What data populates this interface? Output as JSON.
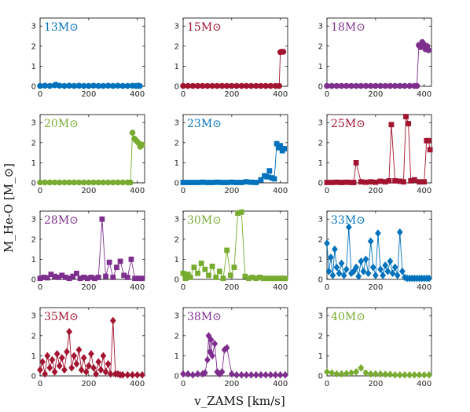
{
  "chart_data": {
    "type": "scatter",
    "layout": "4x3 grid of small multiples",
    "xlabel": "v_ZAMS [km/s]",
    "ylabel": "M_He-O [M_⊙]",
    "xlim": [
      0,
      430
    ],
    "ylim": [
      0,
      3.4
    ],
    "xticks": [
      0,
      200,
      400
    ],
    "yticks": [
      0,
      1,
      2,
      3
    ],
    "grid": false,
    "panels": [
      {
        "label": "13M⊙",
        "color": "#0072BD",
        "marker": "circle",
        "x": [
          0,
          20,
          40,
          60,
          65,
          80,
          100,
          120,
          140,
          160,
          180,
          200,
          220,
          240,
          260,
          280,
          300,
          320,
          340,
          360,
          380,
          395,
          405,
          410
        ],
        "y": [
          0.02,
          0.03,
          0.02,
          0.05,
          0.08,
          0.03,
          0.02,
          0.03,
          0.02,
          0.03,
          0.02,
          0.02,
          0.03,
          0.02,
          0.02,
          0.03,
          0.02,
          0.03,
          0.02,
          0.02,
          0.03,
          0.02,
          0.03,
          0.02
        ]
      },
      {
        "label": "15M⊙",
        "color": "#A2142F",
        "marker": "circle",
        "x": [
          0,
          20,
          40,
          60,
          80,
          100,
          120,
          140,
          160,
          180,
          200,
          220,
          240,
          260,
          280,
          300,
          320,
          340,
          360,
          380,
          395,
          400,
          405,
          412
        ],
        "y": [
          0.02,
          0.02,
          0.02,
          0.02,
          0.02,
          0.02,
          0.02,
          0.02,
          0.02,
          0.02,
          0.02,
          0.02,
          0.02,
          0.02,
          0.02,
          0.02,
          0.02,
          0.02,
          0.02,
          0.02,
          0.02,
          1.7,
          1.72,
          1.72
        ]
      },
      {
        "label": "18M⊙",
        "color": "#7E2F8E",
        "marker": "circle",
        "x": [
          0,
          20,
          40,
          60,
          80,
          100,
          120,
          140,
          160,
          180,
          200,
          220,
          240,
          260,
          280,
          300,
          320,
          340,
          360,
          370,
          378,
          385,
          392,
          398,
          405,
          412,
          418
        ],
        "y": [
          0.02,
          0.02,
          0.02,
          0.02,
          0.02,
          0.02,
          0.02,
          0.02,
          0.02,
          0.02,
          0.02,
          0.02,
          0.02,
          0.02,
          0.02,
          0.02,
          0.02,
          0.02,
          0.02,
          0.02,
          2.05,
          1.95,
          2.2,
          2.1,
          1.85,
          2.0,
          1.8
        ]
      },
      {
        "label": "20M⊙",
        "color": "#77AC30",
        "marker": "circle",
        "x": [
          0,
          20,
          40,
          60,
          80,
          100,
          120,
          140,
          160,
          180,
          200,
          220,
          240,
          260,
          280,
          300,
          320,
          340,
          360,
          372,
          380,
          388,
          396,
          404,
          412,
          420
        ],
        "y": [
          0.02,
          0.02,
          0.02,
          0.02,
          0.02,
          0.02,
          0.02,
          0.02,
          0.02,
          0.02,
          0.02,
          0.02,
          0.02,
          0.02,
          0.02,
          0.02,
          0.02,
          0.02,
          0.02,
          0.02,
          2.5,
          2.2,
          2.1,
          2.0,
          1.8,
          1.9
        ]
      },
      {
        "label": "23M⊙",
        "color": "#0072BD",
        "marker": "square",
        "x": [
          0,
          20,
          40,
          60,
          80,
          100,
          120,
          140,
          160,
          180,
          200,
          220,
          240,
          260,
          280,
          300,
          320,
          335,
          345,
          355,
          365,
          375,
          385,
          392,
          400,
          408,
          416
        ],
        "y": [
          0.02,
          0.02,
          0.02,
          0.02,
          0.03,
          0.02,
          0.02,
          0.03,
          0.02,
          0.02,
          0.03,
          0.02,
          0.02,
          0.05,
          0.03,
          0.02,
          0.15,
          0.35,
          0.3,
          0.6,
          0.25,
          0.2,
          1.95,
          1.75,
          1.85,
          1.6,
          1.7
        ]
      },
      {
        "label": "25M⊙",
        "color": "#A2142F",
        "marker": "square",
        "x": [
          0,
          20,
          40,
          60,
          80,
          100,
          110,
          120,
          140,
          160,
          180,
          200,
          220,
          240,
          255,
          265,
          280,
          300,
          315,
          325,
          335,
          345,
          360,
          380,
          400,
          410,
          418,
          424
        ],
        "y": [
          0.02,
          0.02,
          0.03,
          0.02,
          0.03,
          0.02,
          0.02,
          1.0,
          0.05,
          0.03,
          0.05,
          0.03,
          0.08,
          0.05,
          0.1,
          2.9,
          0.1,
          0.08,
          0.05,
          3.3,
          2.95,
          0.1,
          0.15,
          0.05,
          0.05,
          2.1,
          2.1,
          1.65
        ]
      },
      {
        "label": "28M⊙",
        "color": "#7E2F8E",
        "marker": "square",
        "x": [
          0,
          15,
          30,
          45,
          60,
          75,
          90,
          105,
          120,
          135,
          150,
          165,
          180,
          195,
          210,
          225,
          240,
          255,
          270,
          285,
          300,
          315,
          330,
          345,
          360,
          375,
          390,
          405,
          420
        ],
        "y": [
          0.05,
          0.1,
          0.08,
          0.25,
          0.15,
          0.1,
          0.2,
          0.1,
          0.05,
          0.15,
          0.3,
          0.05,
          0.1,
          0.05,
          0.1,
          0.05,
          0.1,
          3.0,
          0.15,
          0.85,
          0.1,
          0.6,
          0.9,
          0.2,
          0.1,
          1.0,
          0.05,
          0.05,
          0.05
        ]
      },
      {
        "label": "30M⊙",
        "color": "#77AC30",
        "marker": "square",
        "x": [
          0,
          10,
          20,
          30,
          45,
          60,
          75,
          90,
          105,
          120,
          135,
          150,
          165,
          180,
          195,
          210,
          225,
          240,
          255,
          270,
          285,
          300,
          315,
          330,
          345,
          360,
          375,
          390,
          405,
          420
        ],
        "y": [
          0.3,
          0.05,
          0.25,
          0.1,
          0.6,
          0.3,
          0.8,
          0.5,
          0.2,
          0.65,
          0.1,
          0.4,
          0.05,
          1.45,
          0.2,
          0.6,
          3.3,
          3.35,
          0.15,
          0.05,
          0.1,
          0.05,
          0.1,
          0.05,
          0.05,
          0.05,
          0.05,
          0.05,
          0.05,
          0.05
        ]
      },
      {
        "label": "33M⊙",
        "color": "#0072BD",
        "marker": "diamond",
        "x": [
          0,
          8,
          16,
          24,
          32,
          40,
          50,
          60,
          70,
          80,
          90,
          100,
          110,
          120,
          130,
          140,
          150,
          160,
          170,
          180,
          190,
          200,
          210,
          220,
          230,
          240,
          250,
          260,
          270,
          280,
          290,
          300,
          310,
          320,
          330,
          340,
          350,
          360,
          370,
          380,
          390,
          400,
          410,
          420
        ],
        "y": [
          1.8,
          0.4,
          1.1,
          0.2,
          1.5,
          0.6,
          0.3,
          0.8,
          0.2,
          0.5,
          2.6,
          0.3,
          0.4,
          0.6,
          0.15,
          0.9,
          0.4,
          1.0,
          0.3,
          1.9,
          0.6,
          0.2,
          2.3,
          0.5,
          0.2,
          0.7,
          0.4,
          0.9,
          0.3,
          0.6,
          0.2,
          2.35,
          0.4,
          0.1,
          0.05,
          0.05,
          0.05,
          0.05,
          0.05,
          0.05,
          0.05,
          0.05,
          0.05,
          0.05
        ]
      },
      {
        "label": "35M⊙",
        "color": "#A2142F",
        "marker": "diamond",
        "x": [
          0,
          10,
          20,
          30,
          40,
          50,
          60,
          70,
          80,
          90,
          100,
          110,
          120,
          130,
          140,
          150,
          160,
          170,
          180,
          190,
          200,
          210,
          220,
          230,
          240,
          250,
          260,
          270,
          280,
          290,
          300,
          310,
          320,
          330,
          340,
          360,
          380,
          400,
          420
        ],
        "y": [
          0.3,
          0.7,
          0.1,
          1.0,
          0.4,
          0.8,
          0.2,
          1.1,
          0.5,
          0.9,
          0.3,
          1.2,
          2.2,
          0.4,
          1.0,
          0.6,
          1.3,
          0.3,
          0.9,
          0.2,
          0.5,
          1.1,
          0.4,
          0.1,
          0.7,
          0.3,
          1.0,
          0.2,
          0.6,
          0.1,
          2.75,
          0.1,
          0.1,
          0.05,
          0.05,
          0.05,
          0.05,
          0.05,
          0.05
        ]
      },
      {
        "label": "38M⊙",
        "color": "#7E2F8E",
        "marker": "diamond",
        "x": [
          0,
          20,
          40,
          60,
          80,
          90,
          100,
          105,
          110,
          115,
          120,
          130,
          140,
          150,
          160,
          170,
          180,
          200,
          220,
          240,
          260,
          280,
          300,
          320,
          340,
          360,
          380,
          400,
          420
        ],
        "y": [
          0.1,
          0.1,
          0.05,
          0.1,
          0.1,
          0.15,
          0.8,
          2.0,
          1.2,
          1.8,
          1.0,
          1.6,
          0.2,
          0.1,
          0.2,
          1.3,
          1.4,
          0.1,
          0.05,
          0.05,
          0.05,
          0.05,
          0.05,
          0.05,
          0.05,
          0.05,
          0.05,
          0.05,
          0.05
        ]
      },
      {
        "label": "40M⊙",
        "color": "#77AC30",
        "marker": "diamond",
        "x": [
          0,
          20,
          40,
          60,
          80,
          100,
          120,
          140,
          160,
          180,
          200,
          220,
          240,
          260,
          280,
          300,
          320,
          340,
          360,
          380,
          400,
          420
        ],
        "y": [
          0.2,
          0.15,
          0.1,
          0.1,
          0.12,
          0.15,
          0.2,
          0.4,
          0.15,
          0.1,
          0.1,
          0.1,
          0.08,
          0.08,
          0.05,
          0.05,
          0.05,
          0.05,
          0.05,
          0.05,
          0.05,
          0.05
        ]
      }
    ]
  }
}
